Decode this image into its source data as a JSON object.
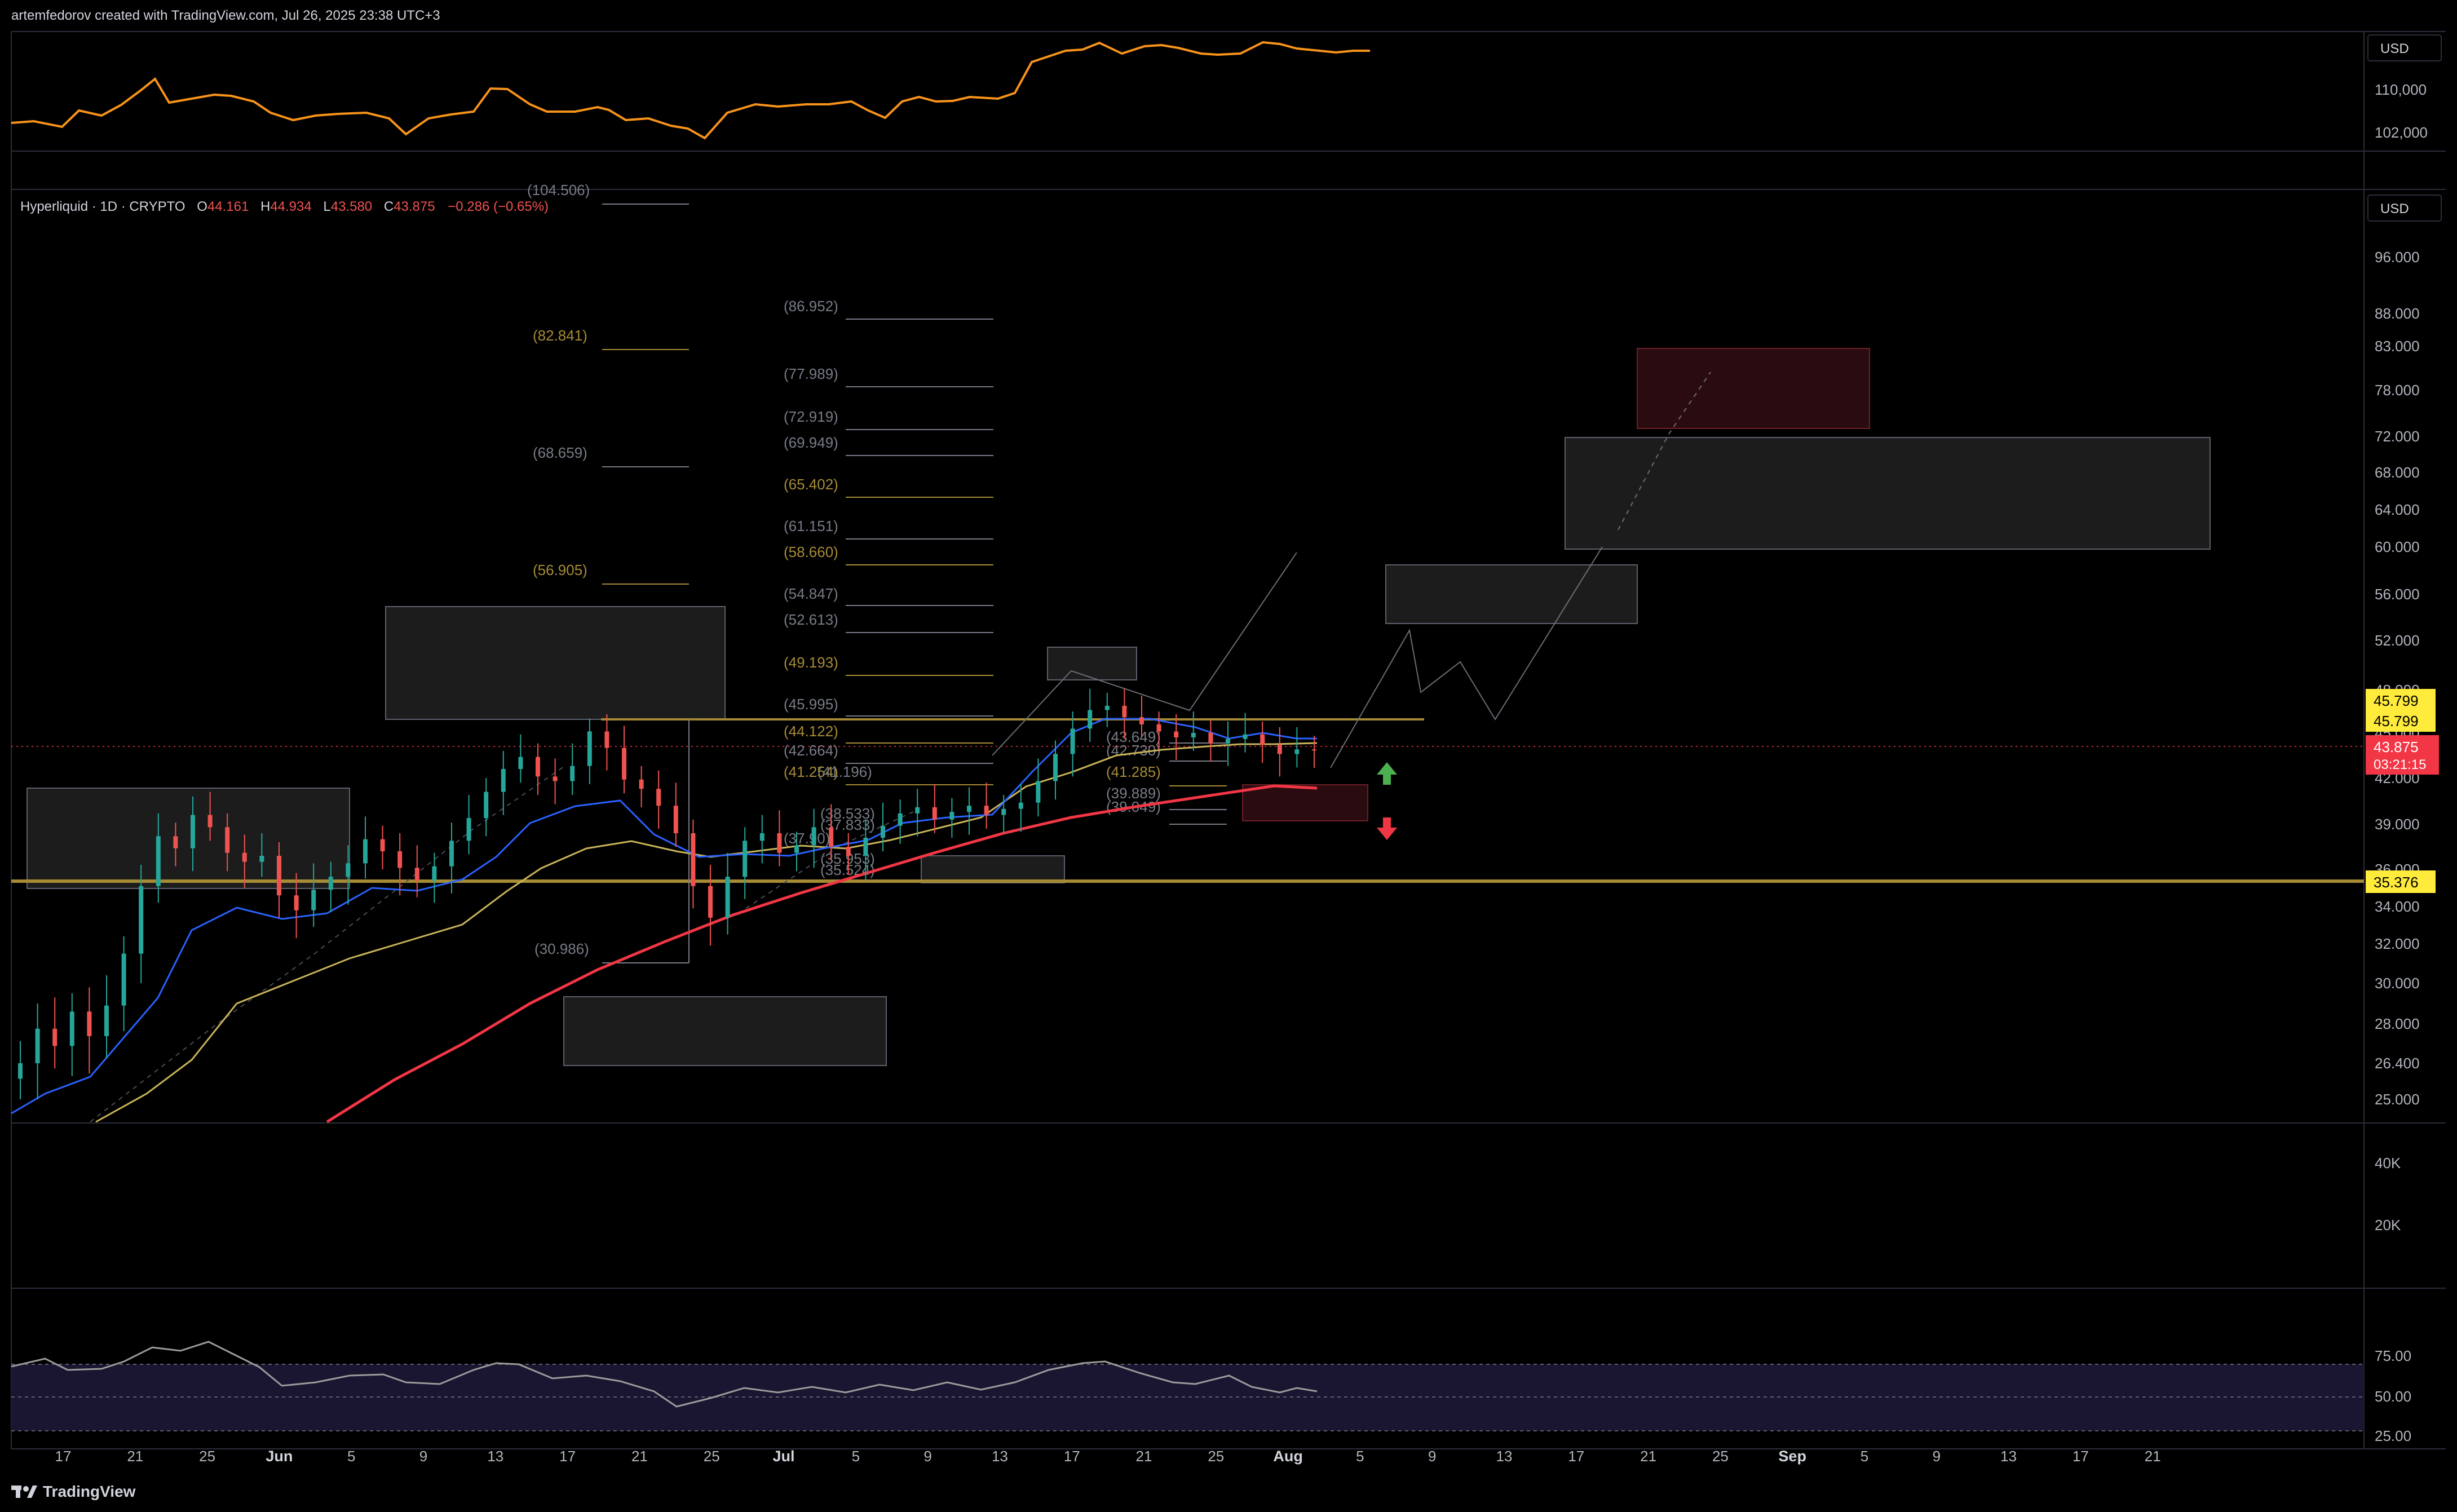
{
  "header": {
    "credit": "artemfedorov created with TradingView.com, Jul 26, 2025 23:38 UTC+3"
  },
  "footer": {
    "brand": "TradingView",
    "logo_icon": "tradingview-logo-icon"
  },
  "colors": {
    "background": "#000000",
    "btc_line": "#f7931a",
    "ema_fast": "#2962ff",
    "ema_mid": "#c9b458",
    "ema_slow": "#f23645",
    "candle_up": "#26a69a",
    "candle_down": "#ef5350",
    "fib_grey": "#787b86",
    "fib_gold": "#a68b35",
    "price_badge": "#f23645",
    "level_badge": "#ffeb3b",
    "rsi_line": "#9b9b9b",
    "rsi_band": "#1a1530"
  },
  "top_pane": {
    "currency": "USD",
    "axis_ticks": [
      "110,000",
      "102,000"
    ]
  },
  "main_pane": {
    "currency": "USD",
    "legend": {
      "symbol": "Hyperliquid · 1D · CRYPTO",
      "open_label": "O",
      "open": "44.161",
      "high_label": "H",
      "high": "44.934",
      "low_label": "L",
      "low": "43.580",
      "close_label": "C",
      "close": "43.875",
      "change": "−0.286 (−0.65%)"
    },
    "axis_ticks": [
      {
        "label": "96.000",
        "y": 96
      },
      {
        "label": "88.000",
        "y": 88
      },
      {
        "label": "83.000",
        "y": 83
      },
      {
        "label": "78.000",
        "y": 78
      },
      {
        "label": "72.000",
        "y": 72
      },
      {
        "label": "68.000",
        "y": 68
      },
      {
        "label": "64.000",
        "y": 64
      },
      {
        "label": "60.000",
        "y": 60
      },
      {
        "label": "56.000",
        "y": 56
      },
      {
        "label": "52.000",
        "y": 52
      },
      {
        "label": "48.000",
        "y": 48
      },
      {
        "label": "45.000",
        "y": 45
      },
      {
        "label": "42.000",
        "y": 42
      },
      {
        "label": "39.000",
        "y": 39
      },
      {
        "label": "36.000",
        "y": 36
      },
      {
        "label": "34.000",
        "y": 34
      },
      {
        "label": "32.000",
        "y": 32
      },
      {
        "label": "30.000",
        "y": 30
      },
      {
        "label": "28.000",
        "y": 28
      },
      {
        "label": "26.400",
        "y": 26.4
      },
      {
        "label": "25.000",
        "y": 25
      }
    ],
    "badges": {
      "level_a": "45.799",
      "level_b": "45.799",
      "last_price": "43.875",
      "countdown": "03:21:15",
      "support": "35.376"
    },
    "fib_set_left": [
      {
        "label": "(104.506)",
        "gold": false
      },
      {
        "label": "(82.841)",
        "gold": true
      },
      {
        "label": "(68.659)",
        "gold": false
      },
      {
        "label": "(56.905)",
        "gold": true
      },
      {
        "label": "(30.986)",
        "gold": false
      }
    ],
    "fib_set_center": [
      {
        "label": "(86.952)",
        "gold": false
      },
      {
        "label": "(77.989)",
        "gold": false
      },
      {
        "label": "(72.919)",
        "gold": false
      },
      {
        "label": "(69.949)",
        "gold": false
      },
      {
        "label": "(65.402)",
        "gold": true
      },
      {
        "label": "(61.151)",
        "gold": false
      },
      {
        "label": "(58.660)",
        "gold": true
      },
      {
        "label": "(54.847)",
        "gold": false
      },
      {
        "label": "(52.613)",
        "gold": false
      },
      {
        "label": "(49.193)",
        "gold": true
      },
      {
        "label": "(45.995)",
        "gold": false
      },
      {
        "label": "(44.122)",
        "gold": true
      },
      {
        "label": "(42.664)",
        "gold": false
      },
      {
        "label": "(41.254)",
        "gold": true
      },
      {
        "label": "(41.196)",
        "gold": false
      }
    ],
    "fib_small": [
      {
        "label": "(38.533)",
        "gold": false
      },
      {
        "label": "(37.833)",
        "gold": false
      },
      {
        "label": "(37.90)",
        "gold": false
      },
      {
        "label": "(35.953)",
        "gold": false
      },
      {
        "label": "(35.524)",
        "gold": false
      }
    ],
    "fib_set_right": [
      {
        "label": "(43.649)",
        "gold": false
      },
      {
        "label": "(42.730)",
        "gold": false
      },
      {
        "label": "(41.285)",
        "gold": true
      },
      {
        "label": "(39.889)",
        "gold": false
      },
      {
        "label": "(39.049)",
        "gold": false
      }
    ]
  },
  "volume_pane": {
    "axis_ticks": [
      "40K",
      "20K"
    ]
  },
  "rsi_pane": {
    "axis_ticks": [
      "75.00",
      "50.00",
      "25.00"
    ]
  },
  "time_axis": {
    "labels": [
      {
        "label": "17",
        "bold": false
      },
      {
        "label": "21",
        "bold": false
      },
      {
        "label": "25",
        "bold": false
      },
      {
        "label": "Jun",
        "bold": true
      },
      {
        "label": "5",
        "bold": false
      },
      {
        "label": "9",
        "bold": false
      },
      {
        "label": "13",
        "bold": false
      },
      {
        "label": "17",
        "bold": false
      },
      {
        "label": "21",
        "bold": false
      },
      {
        "label": "25",
        "bold": false
      },
      {
        "label": "Jul",
        "bold": true
      },
      {
        "label": "5",
        "bold": false
      },
      {
        "label": "9",
        "bold": false
      },
      {
        "label": "13",
        "bold": false
      },
      {
        "label": "17",
        "bold": false
      },
      {
        "label": "21",
        "bold": false
      },
      {
        "label": "25",
        "bold": false
      },
      {
        "label": "Aug",
        "bold": true
      },
      {
        "label": "5",
        "bold": false
      },
      {
        "label": "9",
        "bold": false
      },
      {
        "label": "13",
        "bold": false
      },
      {
        "label": "17",
        "bold": false
      },
      {
        "label": "21",
        "bold": false
      },
      {
        "label": "25",
        "bold": false
      },
      {
        "label": "Sep",
        "bold": true
      },
      {
        "label": "5",
        "bold": false
      },
      {
        "label": "9",
        "bold": false
      },
      {
        "label": "13",
        "bold": false
      },
      {
        "label": "17",
        "bold": false
      },
      {
        "label": "21",
        "bold": false
      }
    ]
  },
  "chart_data": {
    "type": "line",
    "series": [
      {
        "name": "Hyperliquid",
        "close": [
          26.4,
          27.8,
          27.1,
          28.6,
          27.5,
          28.9,
          31.5,
          35.1,
          38.2,
          37.4,
          39.6,
          38.8,
          37.1,
          36.5,
          36.9,
          34.6,
          33.8,
          34.9,
          35.6,
          36.4,
          38.0,
          37.2,
          36.1,
          35.4,
          36.2,
          37.9,
          39.4,
          41.1,
          42.6,
          43.4,
          42.1,
          41.8,
          42.8,
          45.1,
          44.0,
          41.9,
          41.3,
          40.2,
          38.4,
          35.1,
          33.4,
          35.6,
          37.9,
          38.4,
          37.1,
          37.6,
          38.8,
          37.5,
          36.9,
          38.1,
          38.9,
          39.7,
          40.1,
          39.3,
          39.8,
          40.2,
          39.6,
          40.0,
          40.4,
          41.8,
          43.6,
          45.3,
          46.6,
          46.9,
          46.1,
          45.6,
          45.1,
          44.7,
          45.0,
          44.3,
          44.6,
          44.9,
          44.2,
          43.6,
          43.9,
          43.875
        ]
      }
    ]
  }
}
